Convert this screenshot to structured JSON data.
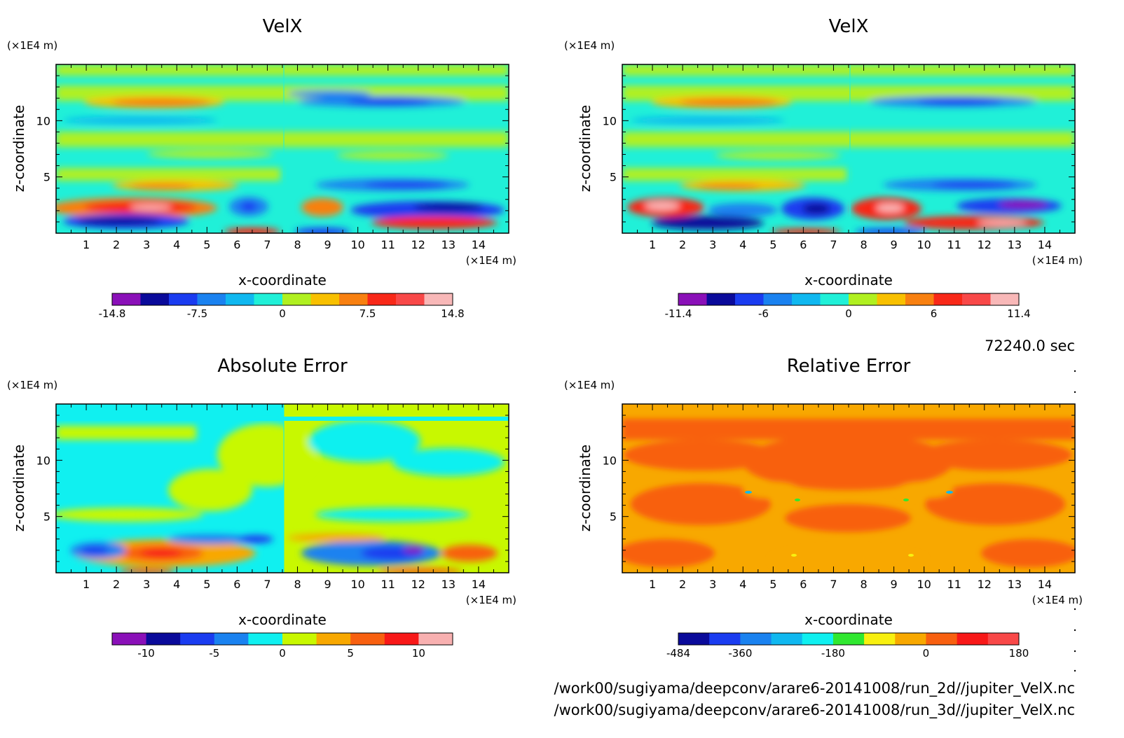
{
  "time_label": "72240.0 sec",
  "file_paths": [
    "/work00/sugiyama/deepconv/arare6-20141008/run_2d//jupiter_VelX.nc",
    "/work00/sugiyama/deepconv/arare6-20141008/run_3d//jupiter_VelX.nc"
  ],
  "chart_data": [
    {
      "type": "heatmap",
      "title": "VelX",
      "xlabel": "x-coordinate",
      "ylabel": "z-coordinate",
      "x_unit": "(×1E4 m)",
      "y_unit": "(×1E4 m)",
      "x_ticks": [
        1,
        2,
        3,
        4,
        5,
        6,
        7,
        8,
        9,
        10,
        11,
        12,
        13,
        14
      ],
      "y_ticks": [
        5,
        10
      ],
      "xlim": [
        0,
        15
      ],
      "ylim": [
        0,
        15
      ],
      "colorbar": {
        "labels": [
          "-14.8",
          "-7.5",
          "0",
          "7.5",
          "14.8"
        ],
        "label_pos": [
          0,
          3,
          6,
          9,
          12
        ],
        "colors": [
          "#8a10b8",
          "#0a0a9a",
          "#1a3cf0",
          "#1a82f0",
          "#10b8f0",
          "#20f0d8",
          "#b0f020",
          "#f8c000",
          "#f88010",
          "#f82818",
          "#f84848",
          "#f8b8b8"
        ]
      }
    },
    {
      "type": "heatmap",
      "title": "VelX",
      "xlabel": "x-coordinate",
      "ylabel": "z-coordinate",
      "x_unit": "(×1E4 m)",
      "y_unit": "(×1E4 m)",
      "x_ticks": [
        1,
        2,
        3,
        4,
        5,
        6,
        7,
        8,
        9,
        10,
        11,
        12,
        13,
        14
      ],
      "y_ticks": [
        5,
        10
      ],
      "xlim": [
        0,
        15
      ],
      "ylim": [
        0,
        15
      ],
      "colorbar": {
        "labels": [
          "-11.4",
          "-6",
          "0",
          "6",
          "11.4"
        ],
        "label_pos": [
          0,
          3,
          6,
          9,
          12
        ],
        "colors": [
          "#8a10b8",
          "#0a0a9a",
          "#1a3cf0",
          "#1a82f0",
          "#10b8f0",
          "#20f0d8",
          "#b0f020",
          "#f8c000",
          "#f88010",
          "#f82818",
          "#f84848",
          "#f8b8b8"
        ]
      }
    },
    {
      "type": "heatmap",
      "title": "Absolute Error",
      "xlabel": "x-coordinate",
      "ylabel": "z-coordinate",
      "x_unit": "(×1E4 m)",
      "y_unit": "(×1E4 m)",
      "x_ticks": [
        1,
        2,
        3,
        4,
        5,
        6,
        7,
        8,
        9,
        10,
        11,
        12,
        13,
        14
      ],
      "y_ticks": [
        5,
        10
      ],
      "xlim": [
        0,
        15
      ],
      "ylim": [
        0,
        15
      ],
      "colorbar": {
        "labels": [
          "-10",
          "-5",
          "0",
          "5",
          "10"
        ],
        "label_pos": [
          1,
          3,
          5,
          7,
          9
        ],
        "colors": [
          "#8a10b8",
          "#0a0a9a",
          "#1a3cf0",
          "#1a82f0",
          "#10f0f0",
          "#c8f800",
          "#f8a800",
          "#f86010",
          "#f81818",
          "#f8b0b0"
        ]
      }
    },
    {
      "type": "heatmap",
      "title": "Relative Error",
      "xlabel": "x-coordinate",
      "ylabel": "z-coordinate",
      "x_unit": "(×1E4 m)",
      "y_unit": "(×1E4 m)",
      "x_ticks": [
        1,
        2,
        3,
        4,
        5,
        6,
        7,
        8,
        9,
        10,
        11,
        12,
        13,
        14
      ],
      "y_ticks": [
        5,
        10
      ],
      "xlim": [
        0,
        15
      ],
      "ylim": [
        0,
        15
      ],
      "colorbar": {
        "labels": [
          "-484",
          "-360",
          "-180",
          "0",
          "180"
        ],
        "label_pos": [
          0,
          2,
          5,
          8,
          11
        ],
        "colors": [
          "#0a0a9a",
          "#1a3cf0",
          "#1a82f0",
          "#10b8f0",
          "#10f0f0",
          "#30e830",
          "#f8f010",
          "#f8a800",
          "#f86010",
          "#f81818",
          "#f84848"
        ]
      }
    }
  ]
}
